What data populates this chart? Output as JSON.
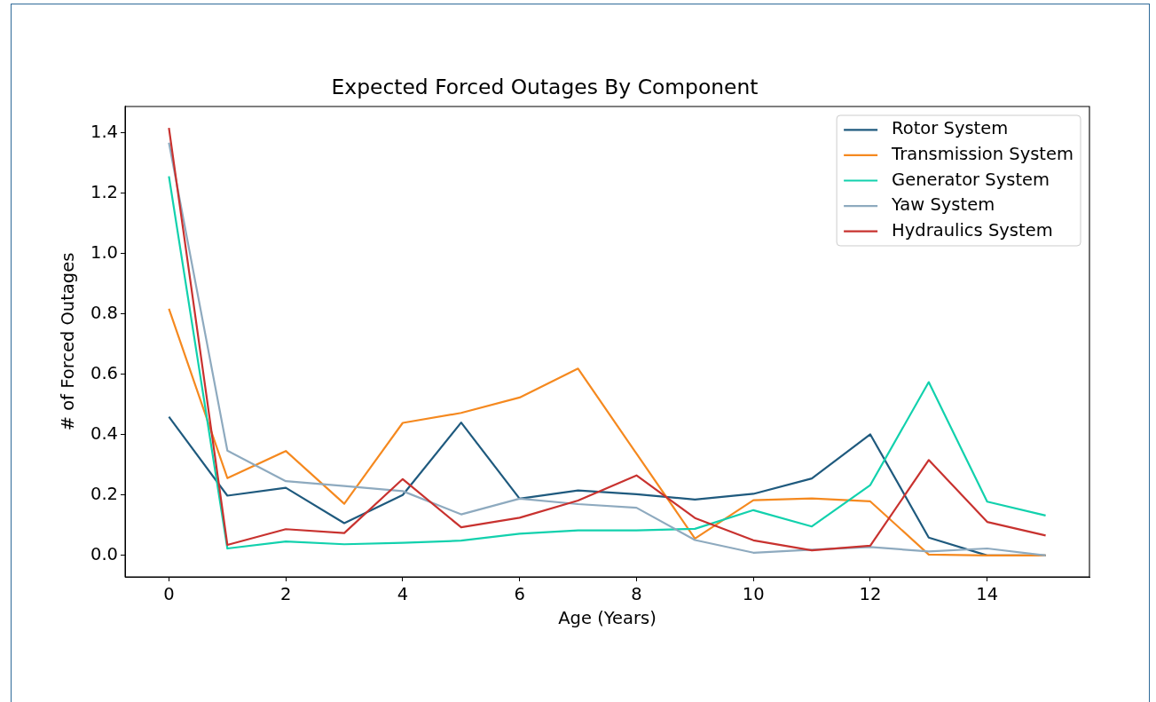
{
  "chart_data": {
    "type": "line",
    "title": "Expected Forced Outages By Component",
    "xlabel": "Age (Years)",
    "ylabel": "# of Forced Outages",
    "x": [
      0,
      1,
      2,
      3,
      4,
      5,
      6,
      7,
      8,
      9,
      10,
      11,
      12,
      13,
      14,
      15
    ],
    "series": [
      {
        "name": "Rotor System",
        "color": "#1f5a7e",
        "values": [
          0.459,
          0.198,
          0.224,
          0.107,
          0.2,
          0.44,
          0.188,
          0.215,
          0.203,
          0.185,
          0.204,
          0.255,
          0.401,
          0.059,
          0,
          0
        ]
      },
      {
        "name": "Transmission System",
        "color": "#f5891f",
        "values": [
          0.817,
          0.256,
          0.346,
          0.171,
          0.439,
          0.472,
          0.523,
          0.619,
          0.337,
          0.056,
          0.183,
          0.189,
          0.179,
          0.003,
          0,
          0
        ]
      },
      {
        "name": "Generator System",
        "color": "#12d1ad",
        "values": [
          1.256,
          0.023,
          0.046,
          0.037,
          0.042,
          0.049,
          0.072,
          0.083,
          0.083,
          0.088,
          0.15,
          0.096,
          0.233,
          0.574,
          0.178,
          0.132
        ]
      },
      {
        "name": "Yaw System",
        "color": "#8eaabf",
        "values": [
          1.367,
          0.347,
          0.246,
          0.23,
          0.213,
          0.136,
          0.188,
          0.17,
          0.158,
          0.051,
          0.009,
          0.019,
          0.028,
          0.013,
          0.023,
          0
        ]
      },
      {
        "name": "Hydraulics System",
        "color": "#c8322f",
        "values": [
          1.416,
          0.035,
          0.087,
          0.074,
          0.253,
          0.093,
          0.125,
          0.182,
          0.265,
          0.124,
          0.05,
          0.017,
          0.032,
          0.316,
          0.111,
          0.066
        ]
      }
    ],
    "xlim": [
      -0.75,
      15.75
    ],
    "ylim": [
      -0.071,
      1.487
    ],
    "xticks": [
      0,
      2,
      4,
      6,
      8,
      10,
      12,
      14
    ],
    "yticks": [
      {
        "value": 0,
        "label": "0.0"
      },
      {
        "value": 0.2,
        "label": "0.2"
      },
      {
        "value": 0.4,
        "label": "0.4"
      },
      {
        "value": 0.6,
        "label": "0.6"
      },
      {
        "value": 0.8,
        "label": "0.8"
      },
      {
        "value": 1,
        "label": "1.0"
      },
      {
        "value": 1.2,
        "label": "1.2"
      },
      {
        "value": 1.4,
        "label": "1.4"
      }
    ],
    "legend": "top right"
  }
}
